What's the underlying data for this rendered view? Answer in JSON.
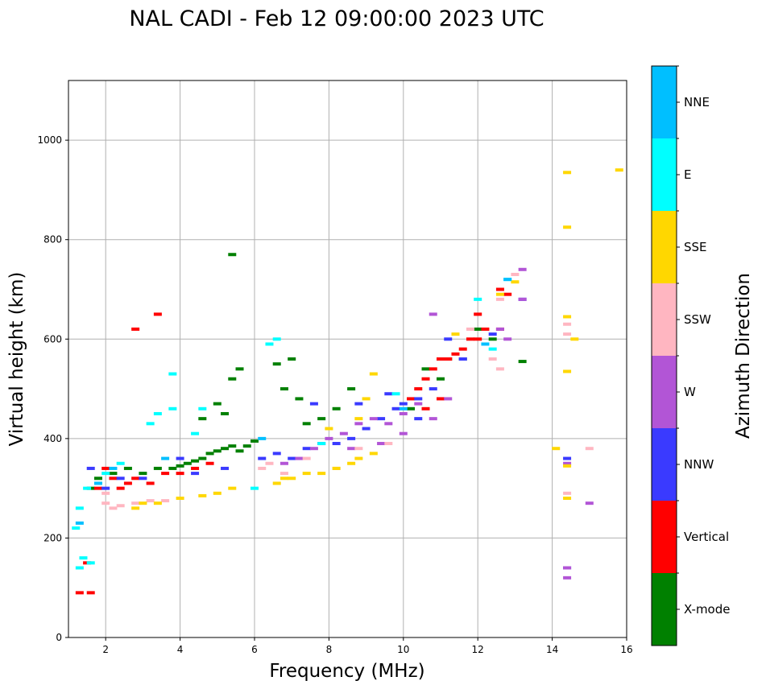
{
  "chart_data": {
    "type": "scatter",
    "title": "NAL CADI - Feb 12 09:00:00 2023 UTC",
    "xlabel": "Frequency (MHz)",
    "ylabel": "Virtual height (km)",
    "xlim": [
      1.0,
      16.0
    ],
    "ylim": [
      0,
      1120
    ],
    "xticks": [
      2,
      4,
      6,
      8,
      10,
      12,
      14,
      16
    ],
    "xtick_labels": [
      "2",
      "4",
      "6",
      "8",
      "10",
      "12",
      "14",
      "16"
    ],
    "yticks": [
      0,
      200,
      400,
      600,
      800,
      1000
    ],
    "ytick_labels": [
      "0",
      "200",
      "400",
      "600",
      "800",
      "1000"
    ],
    "grid": true,
    "colorbar": {
      "label": "Azimuth Direction",
      "categories": [
        "X-mode",
        "Vertical",
        "NNW",
        "W",
        "SSW",
        "SSE",
        "E",
        "NNE"
      ],
      "colors": [
        "#008000",
        "#ff0000",
        "#3a3aff",
        "#b255d6",
        "#ffb6c1",
        "#ffd700",
        "#00ffff",
        "#00bfff"
      ]
    },
    "series": [
      {
        "name": "X-mode",
        "points": [
          [
            1.6,
            300
          ],
          [
            1.8,
            320
          ],
          [
            2.2,
            330
          ],
          [
            2.6,
            340
          ],
          [
            3.0,
            330
          ],
          [
            3.4,
            340
          ],
          [
            3.8,
            340
          ],
          [
            4.0,
            345
          ],
          [
            4.2,
            350
          ],
          [
            4.4,
            355
          ],
          [
            4.6,
            360
          ],
          [
            4.8,
            370
          ],
          [
            5.0,
            375
          ],
          [
            5.2,
            380
          ],
          [
            5.4,
            385
          ],
          [
            5.6,
            375
          ],
          [
            5.8,
            385
          ],
          [
            6.0,
            395
          ],
          [
            5.2,
            450
          ],
          [
            5.4,
            520
          ],
          [
            5.6,
            540
          ],
          [
            6.6,
            550
          ],
          [
            6.8,
            500
          ],
          [
            7.0,
            560
          ],
          [
            7.2,
            480
          ],
          [
            7.4,
            430
          ],
          [
            7.8,
            440
          ],
          [
            8.2,
            460
          ],
          [
            8.6,
            500
          ],
          [
            10.2,
            460
          ],
          [
            10.6,
            540
          ],
          [
            11.0,
            520
          ],
          [
            11.2,
            560
          ],
          [
            11.6,
            560
          ],
          [
            12.0,
            620
          ],
          [
            12.4,
            600
          ],
          [
            13.2,
            555
          ],
          [
            5.0,
            470
          ],
          [
            4.6,
            440
          ],
          [
            5.4,
            770
          ]
        ]
      },
      {
        "name": "Vertical",
        "points": [
          [
            1.3,
            90
          ],
          [
            1.6,
            90
          ],
          [
            1.5,
            150
          ],
          [
            1.8,
            300
          ],
          [
            2.0,
            340
          ],
          [
            2.2,
            320
          ],
          [
            2.4,
            300
          ],
          [
            2.6,
            310
          ],
          [
            2.8,
            320
          ],
          [
            3.2,
            310
          ],
          [
            3.6,
            330
          ],
          [
            4.0,
            330
          ],
          [
            4.4,
            340
          ],
          [
            4.8,
            350
          ],
          [
            10.2,
            480
          ],
          [
            10.4,
            500
          ],
          [
            10.6,
            520
          ],
          [
            10.8,
            540
          ],
          [
            11.0,
            560
          ],
          [
            11.2,
            560
          ],
          [
            11.4,
            570
          ],
          [
            11.6,
            580
          ],
          [
            11.8,
            600
          ],
          [
            12.0,
            600
          ],
          [
            12.2,
            620
          ],
          [
            12.6,
            620
          ],
          [
            12.6,
            700
          ],
          [
            12.8,
            690
          ],
          [
            3.4,
            650
          ],
          [
            2.8,
            620
          ],
          [
            11.0,
            480
          ],
          [
            10.6,
            460
          ],
          [
            12.0,
            650
          ]
        ]
      },
      {
        "name": "NNW",
        "points": [
          [
            1.6,
            340
          ],
          [
            2.0,
            300
          ],
          [
            2.4,
            320
          ],
          [
            3.0,
            320
          ],
          [
            4.0,
            360
          ],
          [
            4.4,
            330
          ],
          [
            5.2,
            340
          ],
          [
            6.2,
            360
          ],
          [
            6.6,
            370
          ],
          [
            7.0,
            360
          ],
          [
            7.4,
            380
          ],
          [
            7.8,
            390
          ],
          [
            8.2,
            390
          ],
          [
            8.6,
            400
          ],
          [
            9.0,
            420
          ],
          [
            9.4,
            440
          ],
          [
            9.8,
            460
          ],
          [
            10.0,
            470
          ],
          [
            10.4,
            480
          ],
          [
            10.8,
            500
          ],
          [
            11.2,
            600
          ],
          [
            11.6,
            560
          ],
          [
            12.4,
            610
          ],
          [
            13.2,
            680
          ],
          [
            7.6,
            470
          ],
          [
            8.8,
            470
          ],
          [
            9.6,
            490
          ],
          [
            10.4,
            440
          ],
          [
            14.4,
            140
          ],
          [
            14.4,
            360
          ]
        ]
      },
      {
        "name": "W",
        "points": [
          [
            6.8,
            350
          ],
          [
            7.2,
            360
          ],
          [
            7.6,
            380
          ],
          [
            8.0,
            400
          ],
          [
            8.4,
            410
          ],
          [
            8.8,
            430
          ],
          [
            9.2,
            440
          ],
          [
            9.6,
            430
          ],
          [
            10.0,
            450
          ],
          [
            10.4,
            470
          ],
          [
            10.8,
            440
          ],
          [
            11.2,
            480
          ],
          [
            8.6,
            380
          ],
          [
            9.4,
            390
          ],
          [
            10.0,
            410
          ],
          [
            10.8,
            650
          ],
          [
            13.2,
            740
          ],
          [
            13.2,
            680
          ],
          [
            14.4,
            120
          ],
          [
            14.4,
            140
          ],
          [
            14.4,
            350
          ],
          [
            15.0,
            270
          ],
          [
            12.6,
            620
          ],
          [
            12.8,
            600
          ]
        ]
      },
      {
        "name": "SSW",
        "points": [
          [
            2.0,
            270
          ],
          [
            2.2,
            260
          ],
          [
            2.4,
            265
          ],
          [
            2.8,
            270
          ],
          [
            3.2,
            275
          ],
          [
            3.6,
            275
          ],
          [
            2.0,
            290
          ],
          [
            6.2,
            340
          ],
          [
            6.4,
            350
          ],
          [
            6.8,
            330
          ],
          [
            7.4,
            360
          ],
          [
            8.2,
            340
          ],
          [
            8.8,
            380
          ],
          [
            9.6,
            390
          ],
          [
            12.6,
            540
          ],
          [
            12.4,
            560
          ],
          [
            13.0,
            730
          ],
          [
            12.6,
            680
          ],
          [
            14.4,
            610
          ],
          [
            14.4,
            630
          ],
          [
            14.4,
            290
          ],
          [
            15.0,
            380
          ],
          [
            11.8,
            620
          ]
        ]
      },
      {
        "name": "SSE",
        "points": [
          [
            2.8,
            260
          ],
          [
            3.0,
            270
          ],
          [
            3.4,
            270
          ],
          [
            4.0,
            280
          ],
          [
            4.6,
            285
          ],
          [
            5.0,
            290
          ],
          [
            5.4,
            300
          ],
          [
            6.6,
            310
          ],
          [
            6.8,
            320
          ],
          [
            7.0,
            320
          ],
          [
            7.4,
            330
          ],
          [
            7.8,
            330
          ],
          [
            8.2,
            340
          ],
          [
            8.6,
            350
          ],
          [
            8.8,
            360
          ],
          [
            9.2,
            370
          ],
          [
            8.0,
            420
          ],
          [
            8.8,
            440
          ],
          [
            9.0,
            480
          ],
          [
            9.2,
            530
          ],
          [
            12.6,
            690
          ],
          [
            13.0,
            715
          ],
          [
            14.1,
            380
          ],
          [
            14.4,
            280
          ],
          [
            14.4,
            345
          ],
          [
            14.4,
            535
          ],
          [
            14.4,
            645
          ],
          [
            14.6,
            600
          ],
          [
            14.4,
            825
          ],
          [
            14.4,
            935
          ],
          [
            15.8,
            940
          ],
          [
            11.4,
            610
          ]
        ]
      },
      {
        "name": "E",
        "points": [
          [
            1.3,
            140
          ],
          [
            1.4,
            160
          ],
          [
            1.6,
            150
          ],
          [
            1.2,
            220
          ],
          [
            1.3,
            260
          ],
          [
            1.5,
            300
          ],
          [
            2.0,
            330
          ],
          [
            2.4,
            350
          ],
          [
            3.2,
            430
          ],
          [
            3.4,
            450
          ],
          [
            3.8,
            460
          ],
          [
            3.8,
            530
          ],
          [
            4.4,
            410
          ],
          [
            4.6,
            460
          ],
          [
            6.4,
            590
          ],
          [
            6.6,
            600
          ],
          [
            7.8,
            390
          ],
          [
            9.8,
            490
          ],
          [
            12.4,
            580
          ],
          [
            12.0,
            680
          ],
          [
            12.8,
            720
          ],
          [
            6.0,
            300
          ]
        ]
      },
      {
        "name": "NNE",
        "points": [
          [
            1.3,
            230
          ],
          [
            1.8,
            310
          ],
          [
            2.2,
            340
          ],
          [
            3.6,
            360
          ],
          [
            6.2,
            400
          ],
          [
            10.0,
            460
          ],
          [
            12.2,
            590
          ],
          [
            12.8,
            720
          ]
        ]
      }
    ]
  }
}
